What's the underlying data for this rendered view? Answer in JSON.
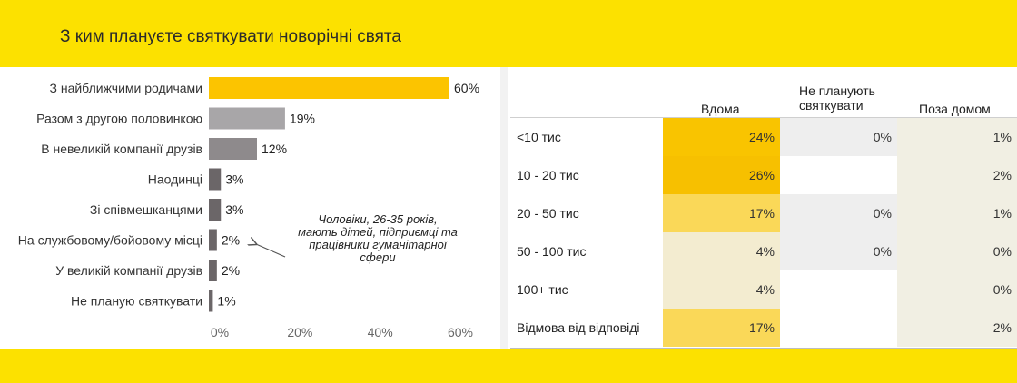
{
  "header": {
    "title": "З ким плануєте святкувати новорічні свята"
  },
  "chart_data": [
    {
      "type": "bar",
      "orientation": "horizontal",
      "categories": [
        "З найближчими родичами",
        "Разом з другою половинкою",
        "В невеликій компанії друзів",
        "Наодинці",
        "Зі співмешканцями",
        "На службовому/бойовому місці",
        "У великій компанії друзів",
        "Не планую святкувати"
      ],
      "values": [
        60,
        19,
        12,
        3,
        3,
        2,
        2,
        1
      ],
      "value_labels": [
        "60%",
        "19%",
        "12%",
        "3%",
        "3%",
        "2%",
        "2%",
        "1%"
      ],
      "bar_colors": [
        "#fcc400",
        "#a8a6a8",
        "#8e8a8c",
        "#6b6668",
        "#6b6668",
        "#6b6668",
        "#6b6668",
        "#6b6668"
      ],
      "xlim": [
        0,
        60
      ],
      "x_ticks": [
        "0%",
        "20%",
        "40%",
        "60%"
      ],
      "grid": false
    },
    {
      "type": "table",
      "columns": [
        "",
        "Вдома",
        "Не планують святкувати",
        "Поза домом"
      ],
      "rows": [
        {
          "label": "<10 тис",
          "values": [
            "24%",
            "0%",
            "1%"
          ],
          "colors": [
            "#f9c400",
            "#eeeeee",
            "#f1efe3"
          ]
        },
        {
          "label": "10 - 20 тис",
          "values": [
            "26%",
            "",
            "2%"
          ],
          "colors": [
            "#f7c000",
            "#ffffff",
            "#f1efe3"
          ]
        },
        {
          "label": "20 - 50 тис",
          "values": [
            "17%",
            "0%",
            "1%"
          ],
          "colors": [
            "#fad858",
            "#eeeeee",
            "#f1efe3"
          ]
        },
        {
          "label": "50 - 100 тис",
          "values": [
            "4%",
            "0%",
            "0%"
          ],
          "colors": [
            "#f3ecd0",
            "#eeeeee",
            "#f1efe3"
          ]
        },
        {
          "label": "100+ тис",
          "values": [
            "4%",
            "",
            "0%"
          ],
          "colors": [
            "#f3ecd0",
            "#ffffff",
            "#f1efe3"
          ]
        },
        {
          "label": "Відмова від відповіді",
          "values": [
            "17%",
            "",
            "2%"
          ],
          "colors": [
            "#fad858",
            "#ffffff",
            "#f1efe3"
          ]
        }
      ]
    }
  ],
  "annotation": {
    "lines": [
      "Чоловіки,  26-35 років,",
      "мають дітей, підприємці та",
      "працівники гуманітарної",
      "сфери"
    ]
  }
}
